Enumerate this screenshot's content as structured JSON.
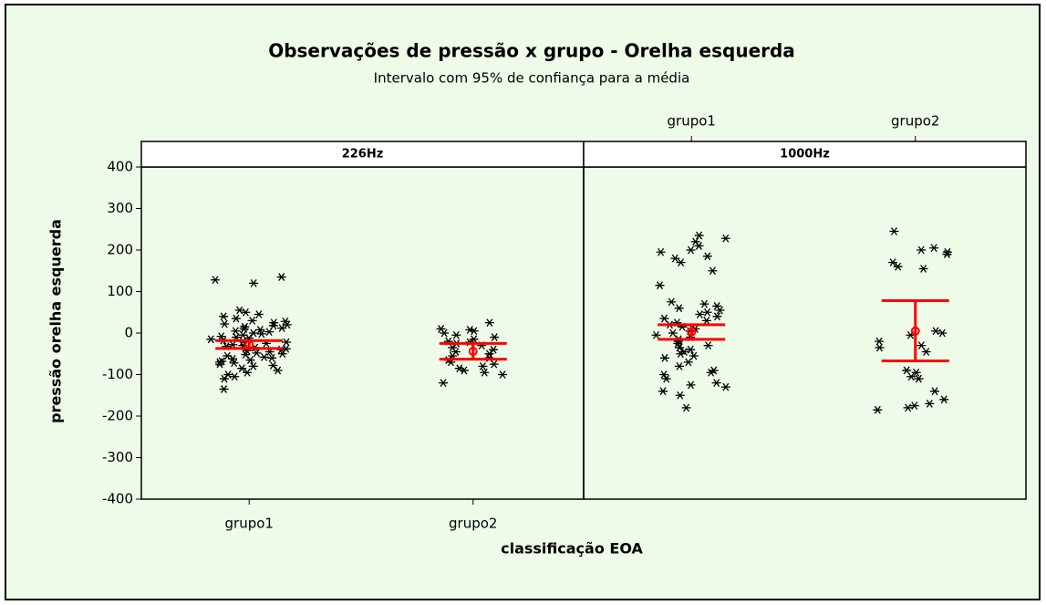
{
  "chart_data": {
    "type": "interval",
    "title": "Observações de pressão x grupo - Orelha esquerda",
    "subtitle": "Intervalo com 95% de confiança para a média",
    "xlabel": "classificação EOA",
    "ylabel": "pressão orelha esquerda",
    "categories": [
      "grupo1",
      "grupo2"
    ],
    "ylim": [
      -400,
      400
    ],
    "yticks": [
      -400,
      -300,
      -200,
      -100,
      0,
      100,
      200,
      300,
      400
    ],
    "interval_color": "#ff0000",
    "point_color": "#000000",
    "panels": [
      {
        "name": "226Hz",
        "groups": [
          {
            "mean": -28,
            "ci": [
              -37,
              -18
            ],
            "points": [
              135,
              128,
              120,
              55,
              50,
              45,
              40,
              35,
              30,
              28,
              25,
              22,
              20,
              18,
              15,
              12,
              10,
              8,
              5,
              3,
              0,
              -2,
              -5,
              -8,
              -10,
              -12,
              -15,
              -18,
              -20,
              -22,
              -25,
              -28,
              -30,
              -32,
              -35,
              -38,
              -40,
              -42,
              -45,
              -48,
              -50,
              -52,
              -55,
              -58,
              -60,
              -62,
              -65,
              -68,
              -70,
              -72,
              -75,
              -78,
              -80,
              -85,
              -90,
              -95,
              -100,
              -105,
              -110,
              -135
            ]
          },
          {
            "mean": -44,
            "ci": [
              -63,
              -25
            ],
            "points": [
              10,
              8,
              5,
              25,
              0,
              -5,
              -10,
              -15,
              -20,
              -22,
              -25,
              -30,
              -35,
              -40,
              -45,
              -50,
              -55,
              -60,
              -65,
              -70,
              -75,
              -80,
              -85,
              -90,
              -95,
              -100,
              -120
            ]
          }
        ]
      },
      {
        "name": "1000Hz",
        "groups": [
          {
            "mean": 3,
            "ci": [
              -15,
              20
            ],
            "points": [
              235,
              228,
              220,
              210,
              200,
              195,
              185,
              180,
              170,
              150,
              115,
              75,
              70,
              65,
              60,
              55,
              50,
              45,
              40,
              35,
              30,
              25,
              20,
              15,
              10,
              5,
              0,
              -5,
              -10,
              -15,
              -20,
              -25,
              -30,
              -35,
              -40,
              -45,
              -50,
              -55,
              -60,
              -70,
              -80,
              -90,
              -95,
              -100,
              -110,
              -120,
              -125,
              -130,
              -140,
              -150,
              -180
            ]
          },
          {
            "mean": 5,
            "ci": [
              -67,
              78
            ],
            "points": [
              245,
              205,
              200,
              195,
              190,
              170,
              160,
              155,
              5,
              0,
              -5,
              -20,
              -30,
              -35,
              -45,
              -90,
              -95,
              -105,
              -110,
              -140,
              -160,
              -170,
              -175,
              -180,
              -185
            ]
          }
        ]
      }
    ]
  }
}
